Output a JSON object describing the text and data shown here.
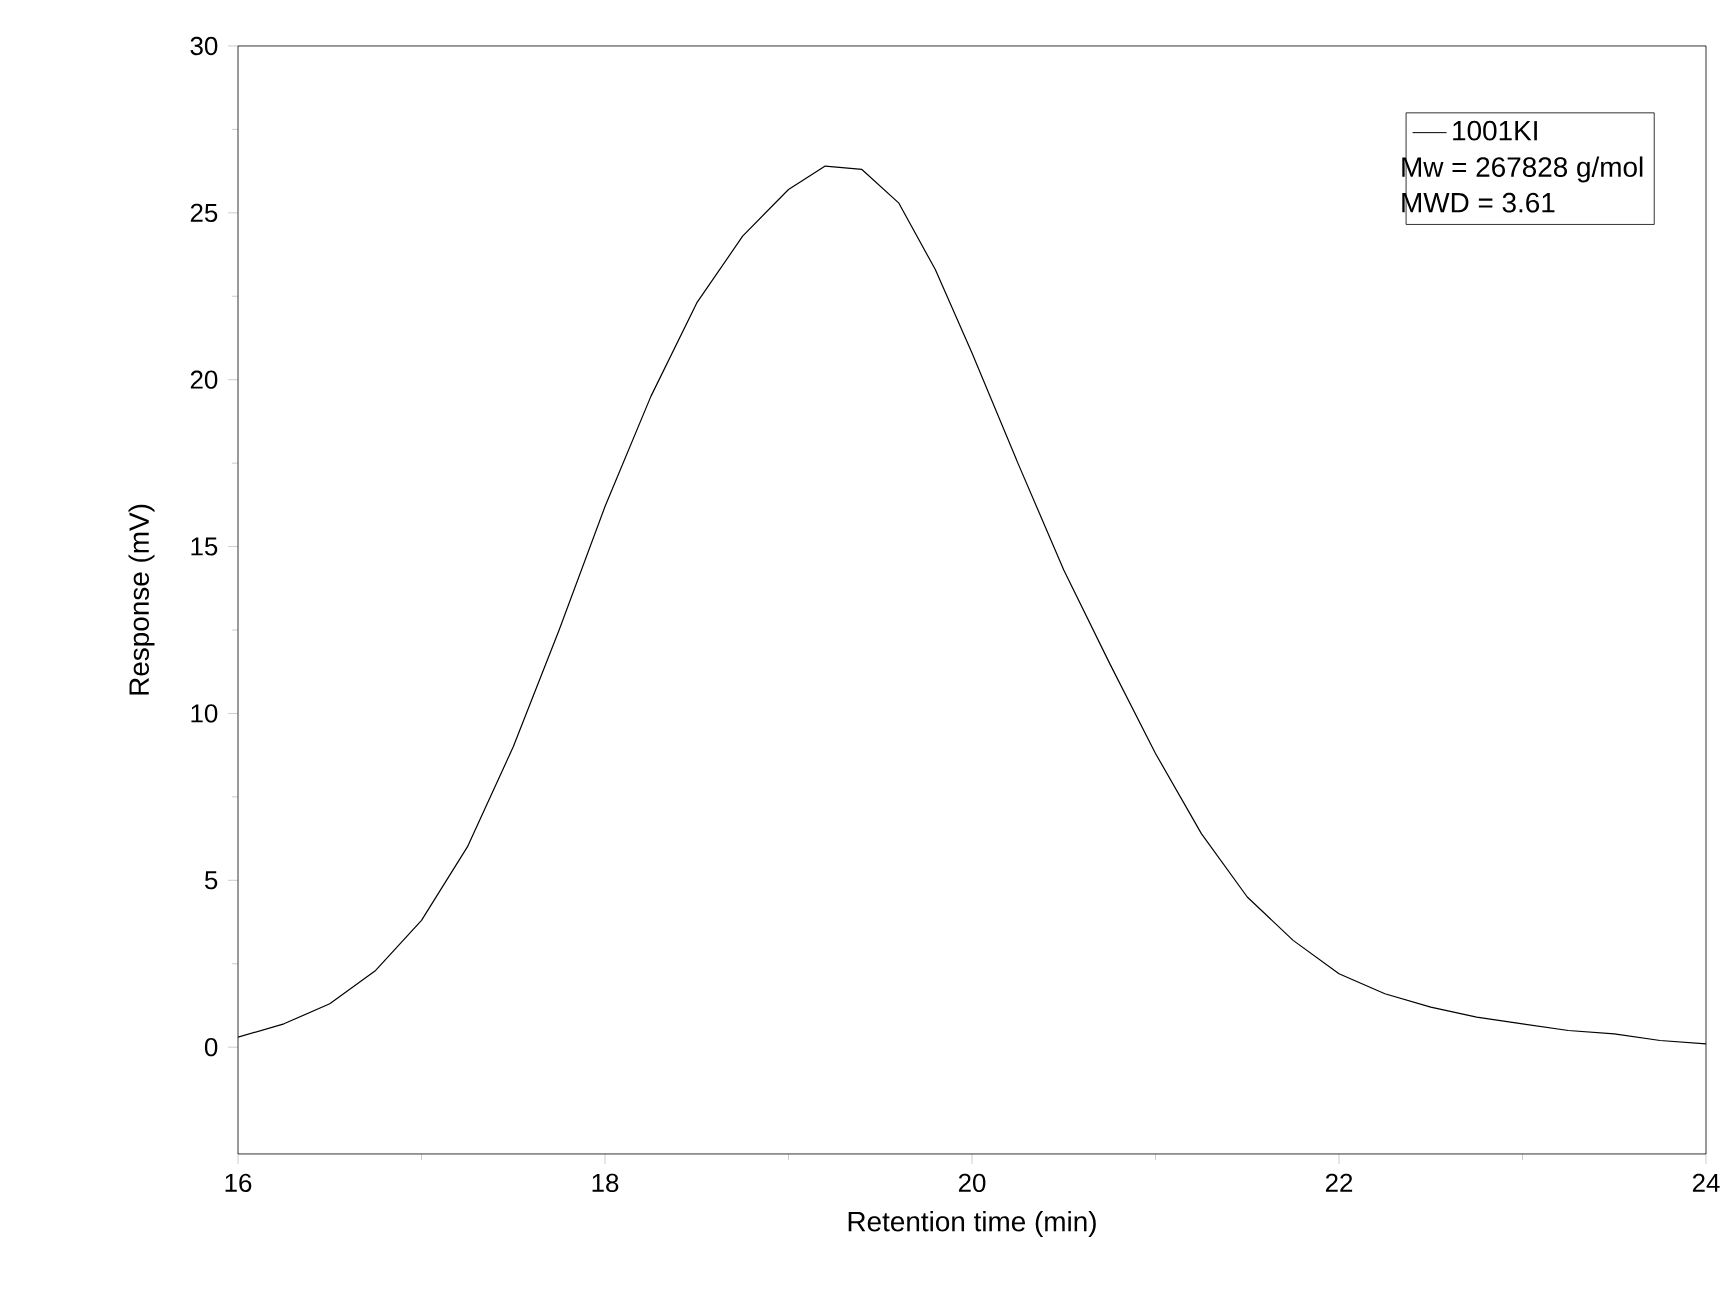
{
  "chart_data": {
    "type": "line",
    "xlabel": "Retention time (min)",
    "ylabel": "Response (mV)",
    "x": [
      16.0,
      16.25,
      16.5,
      16.75,
      17.0,
      17.25,
      17.5,
      17.75,
      18.0,
      18.25,
      18.5,
      18.75,
      19.0,
      19.2,
      19.4,
      19.6,
      19.8,
      20.0,
      20.25,
      20.5,
      20.75,
      21.0,
      21.25,
      21.5,
      21.75,
      22.0,
      22.25,
      22.5,
      22.75,
      23.0,
      23.25,
      23.5,
      23.75,
      24.0
    ],
    "series": [
      {
        "name": "1001KI",
        "color": "#000000",
        "values": [
          0.3,
          0.7,
          1.3,
          2.3,
          3.8,
          6.0,
          9.0,
          12.5,
          16.2,
          19.5,
          22.3,
          24.3,
          25.7,
          26.4,
          26.3,
          25.3,
          23.3,
          20.8,
          17.5,
          14.3,
          11.5,
          8.8,
          6.4,
          4.5,
          3.2,
          2.2,
          1.6,
          1.2,
          0.9,
          0.7,
          0.5,
          0.4,
          0.2,
          0.1
        ]
      }
    ],
    "annotations": [
      "Mw = 267828 g/mol",
      "MWD = 3.61"
    ],
    "xlim": [
      16,
      24
    ],
    "xticks": [
      16,
      18,
      20,
      22,
      24
    ],
    "ylim": [
      -3.2,
      30
    ],
    "yticks": [
      0,
      5,
      10,
      15,
      20,
      25,
      30
    ],
    "grid": false,
    "legend": "top right",
    "marker": "none",
    "line_style": "solid"
  }
}
